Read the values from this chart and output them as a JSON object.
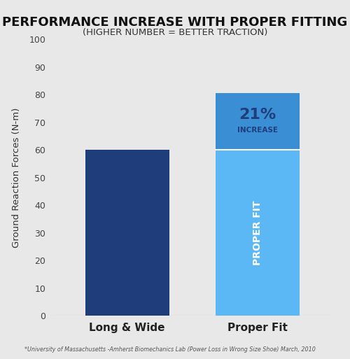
{
  "title_line1": "PERFORMANCE INCREASE WITH PROPER FITTING",
  "title_line2": "(HIGHER NUMBER = BETTER TRACTION)",
  "ylabel": "Ground Reaction Forces (N-m)",
  "categories": [
    "Long & Wide",
    "Proper Fit"
  ],
  "bar1_value": 60,
  "bar2_base_value": 60,
  "bar2_increment_value": 20.6,
  "bar1_color": "#1f3d7a",
  "bar2_base_color": "#5bb8f5",
  "bar2_top_darker": "#3a8fd4",
  "ylim": [
    0,
    100
  ],
  "yticks": [
    0,
    10,
    20,
    30,
    40,
    50,
    60,
    70,
    80,
    90,
    100
  ],
  "annotation_pct": "21%",
  "annotation_label": "INCREASE",
  "bar_label": "PROPER FIT",
  "footnote": "*University of Massachusetts -Amherst Biomechanics Lab (Power Loss in Wrong Size Shoe) March, 2010",
  "bg_color": "#e8e8e8",
  "bar_width": 0.45
}
